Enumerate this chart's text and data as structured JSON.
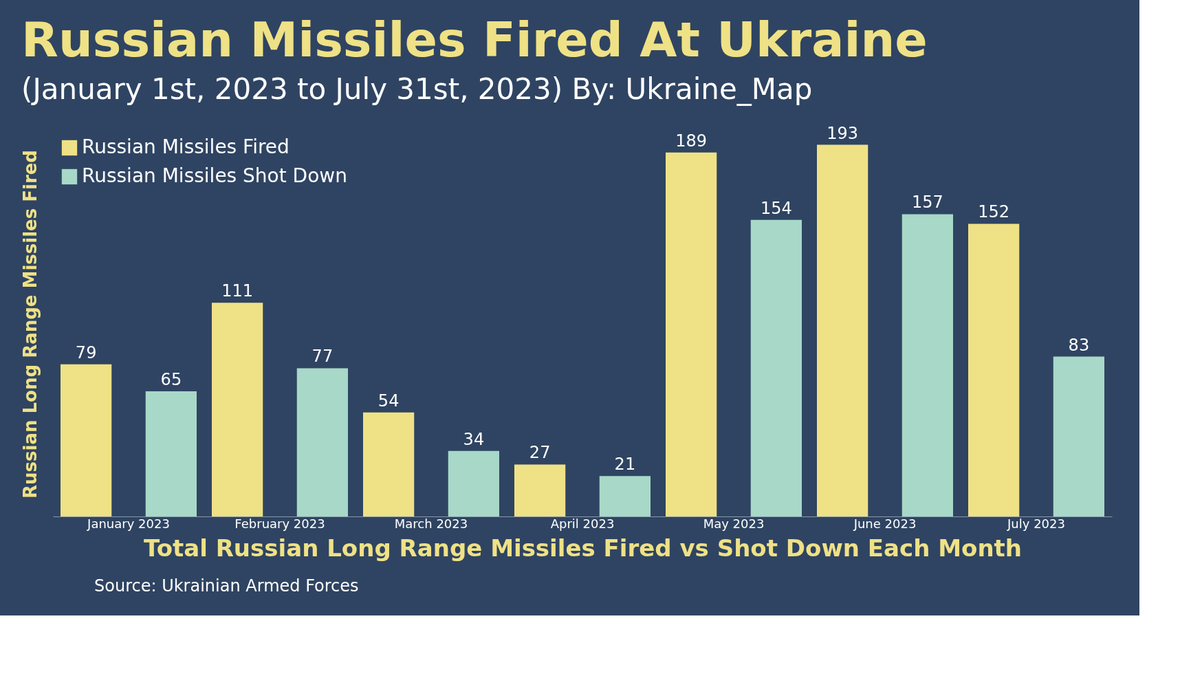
{
  "chart_data": {
    "type": "bar",
    "title": "Russian Missiles Fired At Ukraine",
    "subtitle": "(January 1st, 2023 to July 31st, 2023)  By: Ukraine_Map",
    "xlabel": "Total Russian Long Range Missiles Fired vs Shot Down Each Month",
    "ylabel": "Russian Long Range Missiles Fired",
    "categories": [
      "January 2023",
      "February 2023",
      "March 2023",
      "April 2023",
      "May 2023",
      "June 2023",
      "July 2023"
    ],
    "series": [
      {
        "name": "Russian Missiles Fired",
        "color": "#efe185",
        "values": [
          79,
          111,
          54,
          27,
          189,
          193,
          152
        ]
      },
      {
        "name": "Russian Missiles Shot Down",
        "color": "#a8d8c8",
        "values": [
          65,
          77,
          34,
          21,
          154,
          157,
          83
        ]
      }
    ],
    "tick_labels": "x",
    "data_labels": true,
    "legend": "top left",
    "grid": false,
    "annotations": [
      "Source: Ukrainian Armed Forces"
    ]
  }
}
